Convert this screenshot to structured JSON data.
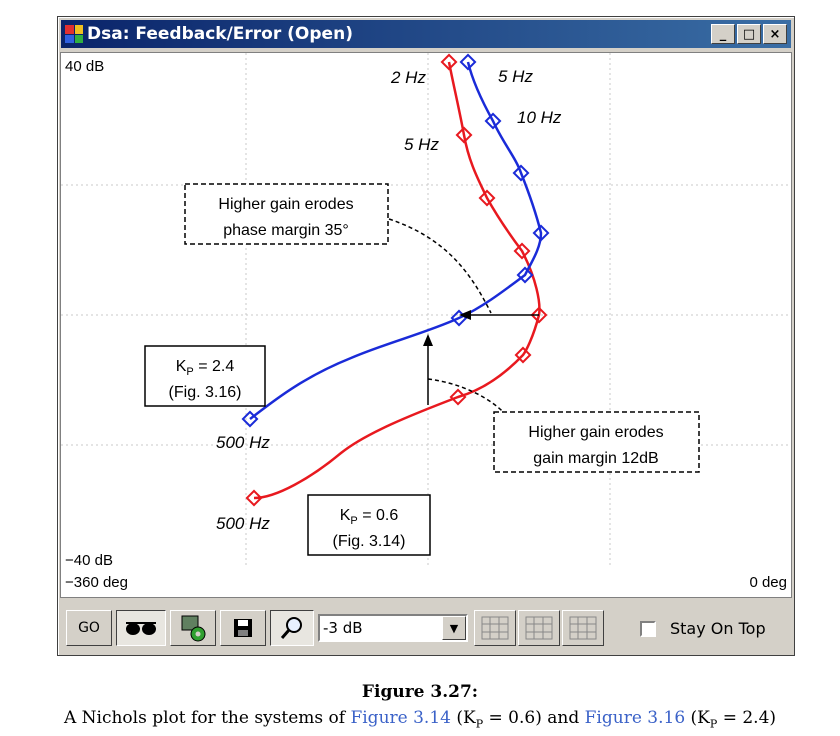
{
  "window": {
    "title": "Dsa: Feedback/Error (Open)",
    "buttons": {
      "minimize": "_",
      "maximize": "□",
      "close": "×"
    }
  },
  "plot": {
    "y_top_label": "40 dB",
    "y_bottom_label": "−40 dB",
    "x_left_label": "−360 deg",
    "x_right_label": "0 deg",
    "freq_labels": {
      "red_2hz": "2 Hz",
      "blue_5hz": "5 Hz",
      "blue_10hz": "10 Hz",
      "red_5hz": "5 Hz",
      "blue_500hz": "500 Hz",
      "red_500hz": "500 Hz"
    },
    "annotations": {
      "phase_line1": "Higher gain erodes",
      "phase_line2": "phase margin 35°",
      "gain_line1": "Higher gain erodes",
      "gain_line2": "gain margin 12dB",
      "kp24_line1": "K",
      "kp24_sub": "P",
      "kp24_val": " = 2.4",
      "kp24_line2": "(Fig. 3.16)",
      "kp06_line1": "K",
      "kp06_sub": "P",
      "kp06_val": " = 0.6",
      "kp06_line2": "(Fig. 3.14)"
    },
    "colors": {
      "red": "#e8191f",
      "blue": "#1a2bd8",
      "grid": "#c8c8c8"
    }
  },
  "toolbar": {
    "go_label": "GO",
    "dropdown_value": "-3 dB",
    "stay_on_top_label": "Stay On Top",
    "stay_on_top_checked": false
  },
  "caption": {
    "figure": "Figure 3.27:",
    "text_a": "A Nichols plot for the systems of ",
    "link1": "Figure 3.14",
    "text_b": " (K",
    "sub1": "P",
    "text_c": " = 0.6) and ",
    "link2": "Figure 3.16",
    "text_d": " (K",
    "sub2": "P",
    "text_e": " = 2.4)"
  }
}
